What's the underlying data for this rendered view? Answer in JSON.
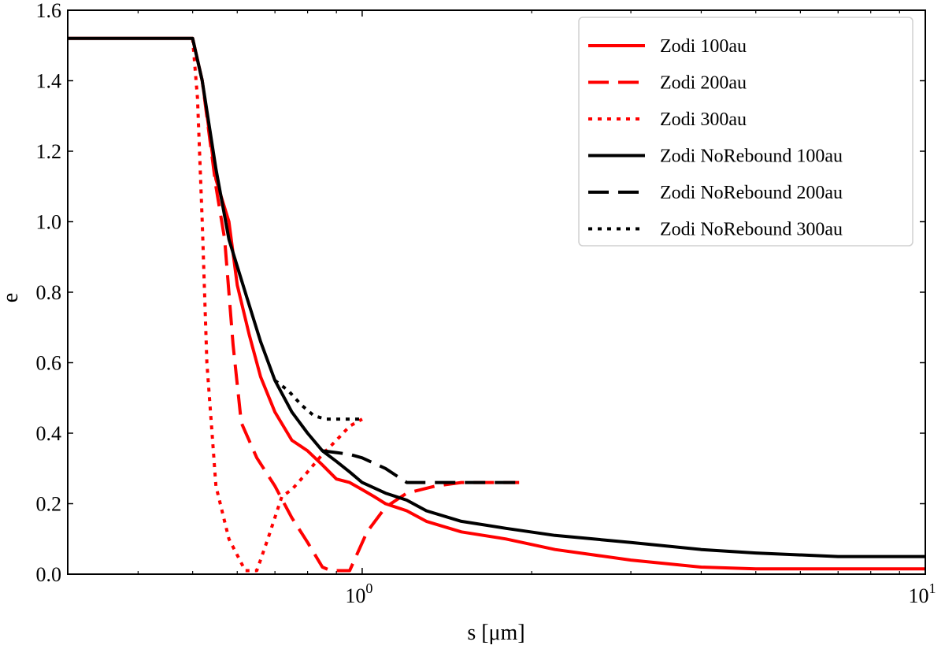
{
  "chart_data": {
    "type": "line",
    "title": "",
    "xlabel": "s [μm]",
    "ylabel": "e",
    "xscale": "log",
    "xlim": [
      0.3,
      10
    ],
    "ylim": [
      0.0,
      1.6
    ],
    "x_ticks": [
      {
        "value": 1,
        "base": "10",
        "exp": "0"
      },
      {
        "value": 10,
        "base": "10",
        "exp": "1"
      }
    ],
    "y_ticks": [
      "0.0",
      "0.2",
      "0.4",
      "0.6",
      "0.8",
      "1.0",
      "1.2",
      "1.4",
      "1.6"
    ],
    "grid": false,
    "legend_position": "top-right",
    "series": [
      {
        "name": "Zodi 100au",
        "color": "#ff0000",
        "dash": "solid",
        "x": [
          0.3,
          0.5,
          0.52,
          0.55,
          0.58,
          0.6,
          0.63,
          0.66,
          0.7,
          0.75,
          0.8,
          0.85,
          0.9,
          0.95,
          1.0,
          1.05,
          1.1,
          1.2,
          1.3,
          1.5,
          1.8,
          2.2,
          3.0,
          4.0,
          5.0,
          7.0,
          10.0
        ],
        "y": [
          1.52,
          1.52,
          1.4,
          1.12,
          1.0,
          0.82,
          0.68,
          0.56,
          0.46,
          0.38,
          0.35,
          0.31,
          0.27,
          0.26,
          0.24,
          0.22,
          0.2,
          0.18,
          0.15,
          0.12,
          0.1,
          0.07,
          0.04,
          0.02,
          0.015,
          0.015,
          0.015
        ]
      },
      {
        "name": "Zodi 200au",
        "color": "#ff0000",
        "dash": "dashed",
        "x": [
          0.5,
          0.52,
          0.55,
          0.57,
          0.59,
          0.61,
          0.65,
          0.7,
          0.75,
          0.8,
          0.85,
          0.88,
          0.95,
          1.02,
          1.1,
          1.2,
          1.35,
          1.5,
          1.7,
          1.9
        ],
        "y": [
          1.52,
          1.4,
          1.1,
          0.95,
          0.65,
          0.43,
          0.33,
          0.25,
          0.16,
          0.09,
          0.02,
          0.01,
          0.01,
          0.12,
          0.19,
          0.23,
          0.25,
          0.26,
          0.26,
          0.26
        ]
      },
      {
        "name": "Zodi 300au",
        "color": "#ff0000",
        "dash": "dotted",
        "x": [
          0.5,
          0.51,
          0.52,
          0.53,
          0.55,
          0.58,
          0.62,
          0.65,
          0.68,
          0.72,
          0.75,
          0.8,
          0.85,
          0.9,
          0.95,
          1.0
        ],
        "y": [
          1.52,
          1.35,
          1.0,
          0.6,
          0.25,
          0.1,
          0.01,
          0.01,
          0.1,
          0.22,
          0.24,
          0.29,
          0.34,
          0.38,
          0.42,
          0.44
        ]
      },
      {
        "name": "Zodi NoRebound 100au",
        "color": "#000000",
        "dash": "solid",
        "x": [
          0.3,
          0.5,
          0.52,
          0.55,
          0.58,
          0.62,
          0.66,
          0.7,
          0.75,
          0.8,
          0.85,
          0.9,
          0.95,
          1.0,
          1.1,
          1.2,
          1.3,
          1.5,
          1.8,
          2.2,
          3.0,
          4.0,
          5.0,
          7.0,
          10.0
        ],
        "y": [
          1.52,
          1.52,
          1.4,
          1.15,
          0.95,
          0.8,
          0.66,
          0.55,
          0.46,
          0.4,
          0.35,
          0.32,
          0.29,
          0.26,
          0.23,
          0.21,
          0.18,
          0.15,
          0.13,
          0.11,
          0.09,
          0.07,
          0.06,
          0.05,
          0.05
        ]
      },
      {
        "name": "Zodi NoRebound 200au",
        "color": "#000000",
        "dash": "dashed",
        "x": [
          0.85,
          0.9,
          0.95,
          1.0,
          1.1,
          1.2,
          1.35,
          1.5,
          1.7,
          1.9
        ],
        "y": [
          0.35,
          0.345,
          0.34,
          0.33,
          0.3,
          0.26,
          0.26,
          0.26,
          0.26,
          0.26
        ]
      },
      {
        "name": "Zodi NoRebound 300au",
        "color": "#000000",
        "dash": "dotted",
        "x": [
          0.7,
          0.74,
          0.78,
          0.82,
          0.86,
          0.9,
          0.95,
          1.0
        ],
        "y": [
          0.55,
          0.52,
          0.48,
          0.45,
          0.44,
          0.44,
          0.44,
          0.44
        ]
      }
    ]
  }
}
